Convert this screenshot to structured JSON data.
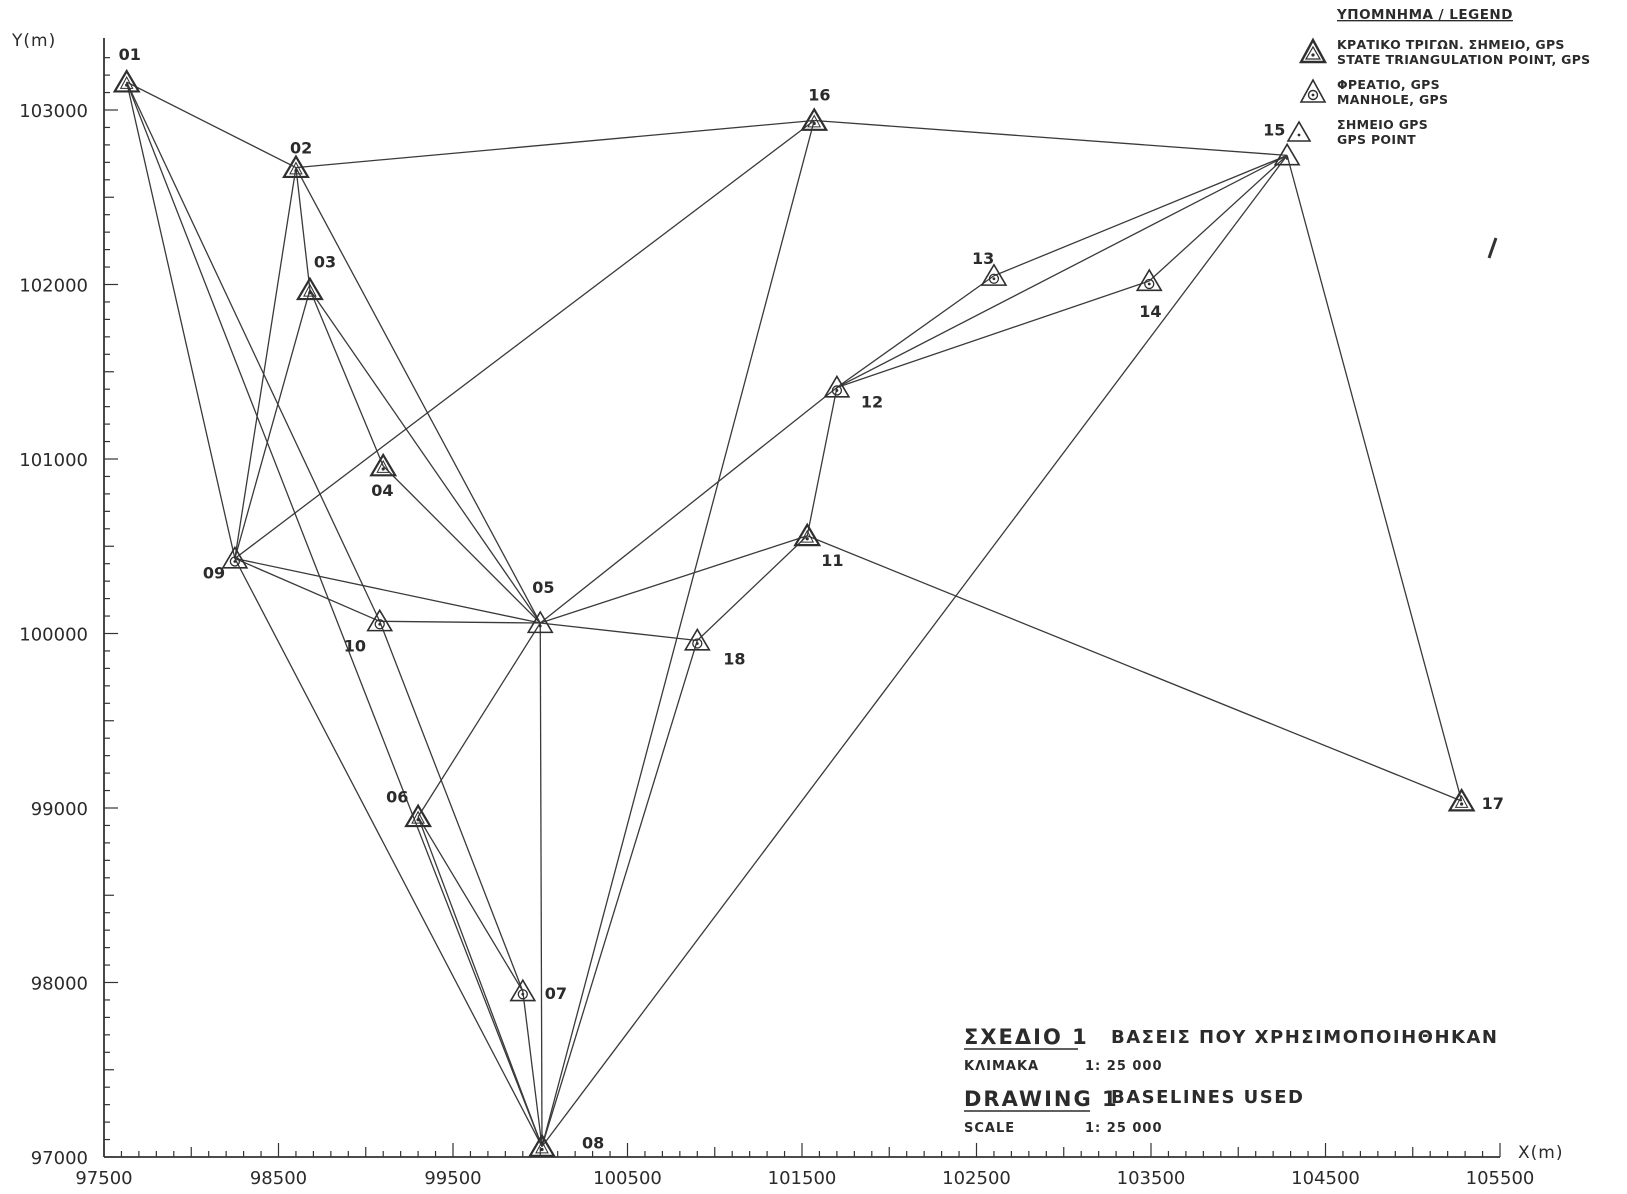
{
  "axes": {
    "x_label": "X(m)",
    "y_label": "Y(m)",
    "x_ticks": [
      "97500",
      "98500",
      "99500",
      "100500",
      "101500",
      "102500",
      "103500",
      "104500",
      "105500"
    ],
    "y_ticks": [
      "97000",
      "98000",
      "99000",
      "100000",
      "101000",
      "102000",
      "103000"
    ]
  },
  "legend": {
    "title": "ΥΠΟΜΝΗΜΑ / LEGEND",
    "items": [
      {
        "icon": "state-triangulation-icon",
        "line1": "ΚΡΑΤΙΚΟ ΤΡΙΓΩΝ. ΣΗΜΕΙΟ, GPS",
        "line2": "STATE TRIANGULATION POINT, GPS"
      },
      {
        "icon": "manhole-icon",
        "line1": "ΦΡΕΑΤΙΟ, GPS",
        "line2": "MANHOLE, GPS"
      },
      {
        "icon": "gps-point-icon",
        "line1": "ΣΗΜΕΙΟ GPS",
        "line2": "GPS POINT"
      }
    ]
  },
  "title_block": {
    "gr_title_left": "ΣΧΕΔΙΟ 1",
    "gr_title_right": "ΒΑΣΕΙΣ ΠΟΥ ΧΡΗΣΙΜΟΠΟΙΗΘΗΚΑΝ",
    "gr_scale_label": "ΚΛΙΜΑΚΑ",
    "gr_scale_value": "1: 25 000",
    "en_title_left": "DRAWING 1",
    "en_title_right": "BASELINES USED",
    "en_scale_label": "SCALE",
    "en_scale_value": "1: 25 000"
  },
  "points": [
    {
      "id": "01",
      "type": "state",
      "x": 97630,
      "y": 103160
    },
    {
      "id": "02",
      "type": "state",
      "x": 98600,
      "y": 102670
    },
    {
      "id": "03",
      "type": "state",
      "x": 98680,
      "y": 101970
    },
    {
      "id": "04",
      "type": "state",
      "x": 99100,
      "y": 100960
    },
    {
      "id": "05",
      "type": "gps",
      "x": 100000,
      "y": 100060
    },
    {
      "id": "06",
      "type": "state",
      "x": 99300,
      "y": 98950
    },
    {
      "id": "07",
      "type": "manhole",
      "x": 99900,
      "y": 97950
    },
    {
      "id": "08",
      "type": "state",
      "x": 100010,
      "y": 97060
    },
    {
      "id": "09",
      "type": "manhole",
      "x": 98250,
      "y": 100430
    },
    {
      "id": "10",
      "type": "manhole",
      "x": 99080,
      "y": 100070
    },
    {
      "id": "11",
      "type": "state",
      "x": 101530,
      "y": 100560
    },
    {
      "id": "12",
      "type": "manhole",
      "x": 101700,
      "y": 101410
    },
    {
      "id": "13",
      "type": "manhole",
      "x": 102600,
      "y": 102050
    },
    {
      "id": "14",
      "type": "manhole",
      "x": 103490,
      "y": 102020
    },
    {
      "id": "15",
      "type": "gps",
      "x": 104280,
      "y": 102740
    },
    {
      "id": "16",
      "type": "state",
      "x": 101570,
      "y": 102940
    },
    {
      "id": "17",
      "type": "state",
      "x": 105280,
      "y": 99040
    },
    {
      "id": "18",
      "type": "manhole",
      "x": 100900,
      "y": 99960
    }
  ],
  "baselines": [
    [
      "01",
      "02"
    ],
    [
      "01",
      "09"
    ],
    [
      "01",
      "10"
    ],
    [
      "01",
      "08"
    ],
    [
      "02",
      "16"
    ],
    [
      "02",
      "03"
    ],
    [
      "02",
      "09"
    ],
    [
      "02",
      "05"
    ],
    [
      "03",
      "09"
    ],
    [
      "03",
      "05"
    ],
    [
      "03",
      "04"
    ],
    [
      "04",
      "05"
    ],
    [
      "09",
      "16"
    ],
    [
      "09",
      "05"
    ],
    [
      "09",
      "10"
    ],
    [
      "09",
      "08"
    ],
    [
      "10",
      "05"
    ],
    [
      "10",
      "07"
    ],
    [
      "05",
      "18"
    ],
    [
      "05",
      "11"
    ],
    [
      "05",
      "12"
    ],
    [
      "05",
      "06"
    ],
    [
      "05",
      "08"
    ],
    [
      "06",
      "07"
    ],
    [
      "06",
      "08"
    ],
    [
      "07",
      "08"
    ],
    [
      "08",
      "16"
    ],
    [
      "08",
      "18"
    ],
    [
      "08",
      "15"
    ],
    [
      "18",
      "11"
    ],
    [
      "11",
      "12"
    ],
    [
      "11",
      "17"
    ],
    [
      "12",
      "13"
    ],
    [
      "12",
      "14"
    ],
    [
      "12",
      "15"
    ],
    [
      "13",
      "15"
    ],
    [
      "14",
      "15"
    ],
    [
      "16",
      "15"
    ],
    [
      "15",
      "17"
    ]
  ]
}
